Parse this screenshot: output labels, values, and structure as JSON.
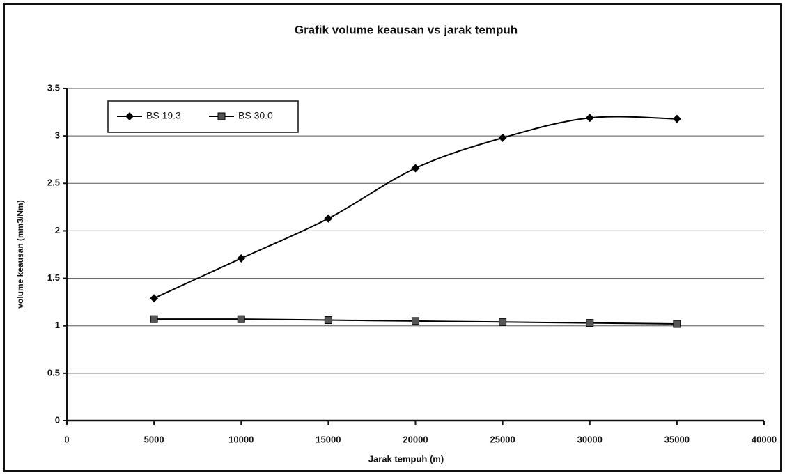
{
  "chart_data": {
    "type": "line",
    "title": "Grafik volume keausan vs jarak tempuh",
    "x_label": "Jarak tempuh (m)",
    "y_label": "volume keausan (mm3/Nm)",
    "x": [
      5000,
      10000,
      15000,
      20000,
      25000,
      30000,
      35000
    ],
    "series": [
      {
        "name": "BS 19.3",
        "color": "#000000",
        "marker": "diamond",
        "values": [
          1.29,
          1.71,
          2.13,
          2.66,
          2.98,
          3.19,
          3.18
        ]
      },
      {
        "name": "BS 30.0",
        "color": "#000000",
        "marker": "square",
        "values": [
          1.07,
          1.07,
          1.06,
          1.05,
          1.04,
          1.03,
          1.02
        ]
      }
    ],
    "xlim": [
      0,
      40000
    ],
    "xticks": [
      0,
      5000,
      10000,
      15000,
      20000,
      25000,
      30000,
      35000,
      40000
    ],
    "ylim": [
      0,
      3.5
    ],
    "yticks": [
      0,
      0.5,
      1,
      1.5,
      2,
      2.5,
      3,
      3.5
    ],
    "grid": true,
    "smooth": true,
    "legend": "top-left"
  }
}
